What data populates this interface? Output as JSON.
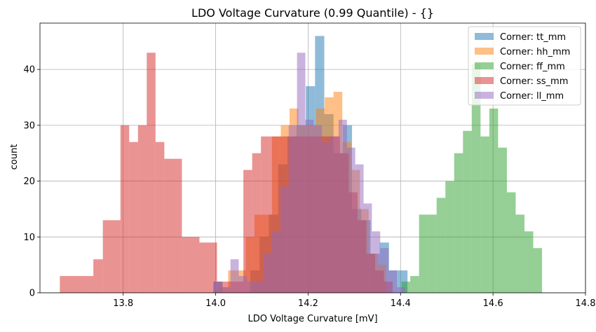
{
  "chart_data": {
    "type": "histogram",
    "title": "LDO Voltage Curvature (0.99 Quantile) - {}",
    "xlabel": "LDO Voltage Curvature [mV]",
    "ylabel": "count",
    "xlim": [
      13.62,
      14.8
    ],
    "ylim": [
      0,
      48.3
    ],
    "xticks": [
      13.8,
      14.0,
      14.2,
      14.4,
      14.6,
      14.8
    ],
    "yticks": [
      0,
      10,
      20,
      30,
      40
    ],
    "grid": true,
    "legend_position": "top-right",
    "alpha": 0.5,
    "series": [
      {
        "name": "Corner: tt_mm",
        "color": "#1f77b4",
        "bin_edges": [
          13.995,
          14.015,
          14.035,
          14.055,
          14.075,
          14.095,
          14.115,
          14.135,
          14.155,
          14.175,
          14.195,
          14.215,
          14.235,
          14.255,
          14.275,
          14.295,
          14.315,
          14.335,
          14.355,
          14.375,
          14.395,
          14.415
        ],
        "counts": [
          2,
          0,
          0,
          0,
          4,
          10,
          14,
          23,
          28,
          30,
          37,
          46,
          32,
          25,
          30,
          15,
          13,
          7,
          9,
          4,
          4
        ]
      },
      {
        "name": "Corner: hh_mm",
        "color": "#ff7f0e",
        "bin_edges": [
          14.008,
          14.027,
          14.046,
          14.065,
          14.084,
          14.103,
          14.122,
          14.141,
          14.16,
          14.179,
          14.198,
          14.217,
          14.236,
          14.255,
          14.274,
          14.293,
          14.312,
          14.331,
          14.35,
          14.369
        ],
        "counts": [
          1,
          4,
          4,
          10,
          14,
          14,
          28,
          30,
          33,
          30,
          30,
          33,
          35,
          36,
          27,
          22,
          15,
          7,
          5
        ]
      },
      {
        "name": "Corner: ff_mm",
        "color": "#2ca02c",
        "bin_edges": [
          14.402,
          14.421,
          14.44,
          14.459,
          14.478,
          14.497,
          14.516,
          14.535,
          14.554,
          14.573,
          14.592,
          14.611,
          14.63,
          14.649,
          14.668,
          14.687,
          14.706,
          14.725,
          14.744,
          14.763
        ],
        "counts": [
          2,
          3,
          14,
          14,
          17,
          20,
          25,
          29,
          41,
          28,
          33,
          26,
          18,
          14,
          11,
          8,
          0,
          0,
          0
        ]
      },
      {
        "name": "Corner: ss_mm",
        "color": "#d62728",
        "bin_edges": [
          13.663,
          13.7355,
          13.756,
          13.794,
          13.813,
          13.832,
          13.851,
          13.87,
          13.889,
          13.908,
          13.927,
          13.946,
          13.965,
          13.984,
          14.003,
          14.022,
          14.041,
          14.06,
          14.079,
          14.098,
          14.117,
          14.136,
          14.155,
          14.174,
          14.193,
          14.212,
          14.231,
          14.25,
          14.269,
          14.288,
          14.307,
          14.326,
          14.345,
          14.364,
          14.383
        ],
        "counts": [
          3,
          6,
          13,
          30,
          27,
          30,
          43,
          27,
          24,
          24,
          10,
          10,
          9,
          9,
          2,
          2,
          2,
          22,
          25,
          28,
          28,
          28,
          28,
          28,
          28,
          28,
          28,
          28,
          25,
          18,
          13,
          7,
          4,
          2
        ]
      },
      {
        "name": "Corner: ll_mm",
        "color": "#9467bd",
        "bin_edges": [
          13.996,
          14.014,
          14.032,
          14.05,
          14.068,
          14.086,
          14.104,
          14.122,
          14.14,
          14.158,
          14.176,
          14.194,
          14.212,
          14.23,
          14.248,
          14.266,
          14.284,
          14.302,
          14.32,
          14.338,
          14.356,
          14.374,
          14.392,
          14.41
        ],
        "counts": [
          2,
          1,
          6,
          3,
          2,
          2,
          7,
          11,
          19,
          30,
          43,
          31,
          30,
          27,
          28,
          31,
          26,
          23,
          16,
          11,
          8,
          4,
          1
        ]
      }
    ]
  }
}
